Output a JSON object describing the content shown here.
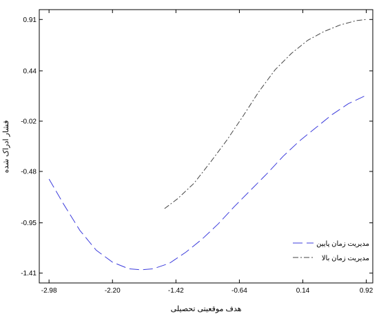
{
  "chart_data": {
    "type": "line",
    "title": "",
    "xlabel": "هدف موقعیتی تحصیلی",
    "ylabel": "فشار ادراک شده",
    "xlim": [
      -3.1,
      1.0
    ],
    "ylim": [
      -1.5,
      1.0
    ],
    "x_ticks": [
      "-2.98",
      "-2.20",
      "-1.42",
      "-0.64",
      "0.14",
      "0.92"
    ],
    "x_tick_values": [
      -2.98,
      -2.2,
      -1.42,
      -0.64,
      0.14,
      0.92
    ],
    "y_ticks": [
      "0.91",
      "0.44",
      "-0.02",
      "-0.48",
      "-0.95",
      "-1.41"
    ],
    "y_tick_values": [
      0.91,
      0.44,
      -0.02,
      -0.48,
      -0.95,
      -1.41
    ],
    "grid": false,
    "legend": "lower-right",
    "series": [
      {
        "name": "مدیریت زمان پایین",
        "color": "#3b3bdc",
        "style": "dashed",
        "x": [
          -2.98,
          -2.8,
          -2.6,
          -2.4,
          -2.2,
          -2.0,
          -1.85,
          -1.7,
          -1.5,
          -1.3,
          -1.1,
          -0.9,
          -0.7,
          -0.5,
          -0.3,
          -0.1,
          0.1,
          0.3,
          0.5,
          0.7,
          0.9
        ],
        "y": [
          -0.55,
          -0.78,
          -1.02,
          -1.2,
          -1.31,
          -1.37,
          -1.38,
          -1.37,
          -1.32,
          -1.22,
          -1.1,
          -0.96,
          -0.8,
          -0.65,
          -0.5,
          -0.34,
          -0.2,
          -0.08,
          0.04,
          0.14,
          0.21
        ]
      },
      {
        "name": "مدیریت زمان بالا",
        "color": "#444444",
        "style": "dashdot",
        "x": [
          -1.56,
          -1.4,
          -1.2,
          -1.0,
          -0.8,
          -0.6,
          -0.4,
          -0.2,
          0.0,
          0.2,
          0.4,
          0.6,
          0.8,
          0.92
        ],
        "y": [
          -0.82,
          -0.73,
          -0.59,
          -0.4,
          -0.2,
          0.02,
          0.25,
          0.45,
          0.6,
          0.72,
          0.8,
          0.86,
          0.9,
          0.91
        ]
      }
    ]
  }
}
